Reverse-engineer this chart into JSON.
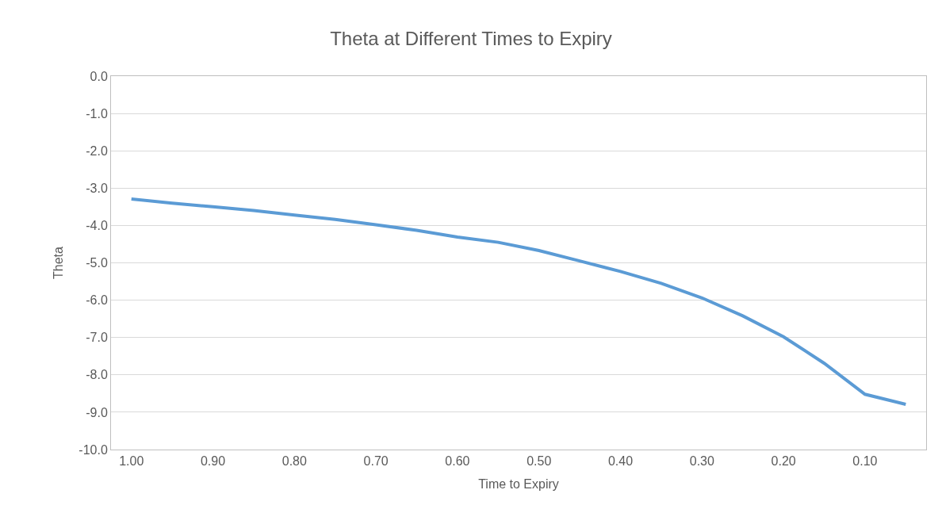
{
  "chart_data": {
    "type": "line",
    "title": "Theta at Different Times to Expiry",
    "xlabel": "Time to Expiry",
    "ylabel": "Theta",
    "categories": [
      "1.00",
      null,
      "0.90",
      null,
      "0.80",
      null,
      "0.70",
      null,
      "0.60",
      null,
      "0.50",
      null,
      "0.40",
      null,
      "0.30",
      null,
      "0.20",
      null,
      "0.10",
      null
    ],
    "series": [
      {
        "color": "#5b9bd5",
        "values": [
          -3.29,
          -3.4,
          -3.5,
          -3.6,
          -3.72,
          -3.84,
          -3.98,
          -4.13,
          -4.31,
          -4.45,
          -4.67,
          -4.95,
          -5.23,
          -5.55,
          -5.94,
          -6.42,
          -6.98,
          -7.69,
          -8.52,
          -8.79
        ]
      }
    ],
    "ylim": [
      -10,
      0
    ],
    "yticks": [
      {
        "value": -10,
        "label": "-10.0"
      },
      {
        "value": -9,
        "label": "-9.0"
      },
      {
        "value": -8,
        "label": "-8.0"
      },
      {
        "value": -7,
        "label": "-7.0"
      },
      {
        "value": -6,
        "label": "-6.0"
      },
      {
        "value": -5,
        "label": "-5.0"
      },
      {
        "value": -4,
        "label": "-4.0"
      },
      {
        "value": -3,
        "label": "-3.0"
      },
      {
        "value": -2,
        "label": "-2.0"
      },
      {
        "value": -1,
        "label": "-1.0"
      },
      {
        "value": 0,
        "label": "0.0"
      }
    ],
    "grid": "y",
    "legend": false,
    "marker": "none",
    "line_style": "solid"
  }
}
